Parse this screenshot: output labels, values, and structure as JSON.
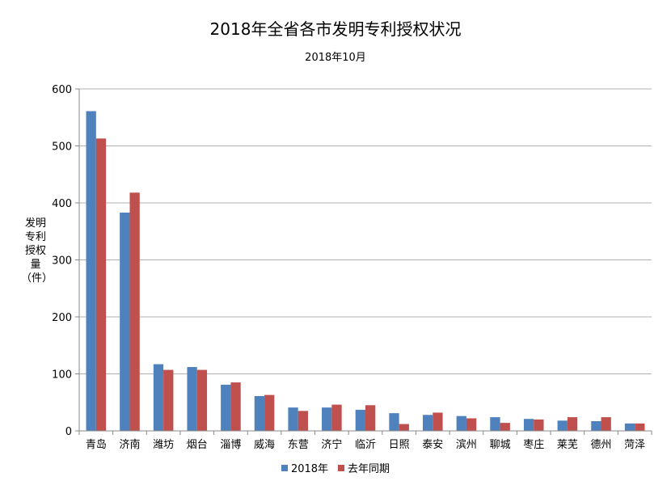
{
  "chart_data": {
    "type": "bar",
    "title": "2018年全省各市发明专利授权状况",
    "subtitle": "2018年10月",
    "ylabel": "发明\n专利\n授权\n量\n（件）",
    "xlabel": "",
    "ylim": [
      0,
      600
    ],
    "yticks": [
      0,
      100,
      200,
      300,
      400,
      500,
      600
    ],
    "grid": true,
    "legend_position": "bottom",
    "categories": [
      "青岛",
      "济南",
      "潍坊",
      "烟台",
      "淄博",
      "威海",
      "东营",
      "济宁",
      "临沂",
      "日照",
      "泰安",
      "滨州",
      "聊城",
      "枣庄",
      "莱芜",
      "德州",
      "菏泽"
    ],
    "series": [
      {
        "name": "2018年",
        "color": "#4f81bd",
        "values": [
          561,
          383,
          117,
          112,
          81,
          61,
          41,
          41,
          37,
          31,
          28,
          26,
          24,
          21,
          18,
          17,
          13
        ]
      },
      {
        "name": "去年同期",
        "color": "#c0504d",
        "values": [
          513,
          418,
          107,
          107,
          85,
          63,
          35,
          46,
          45,
          12,
          32,
          22,
          14,
          20,
          24,
          24,
          13
        ]
      }
    ]
  }
}
